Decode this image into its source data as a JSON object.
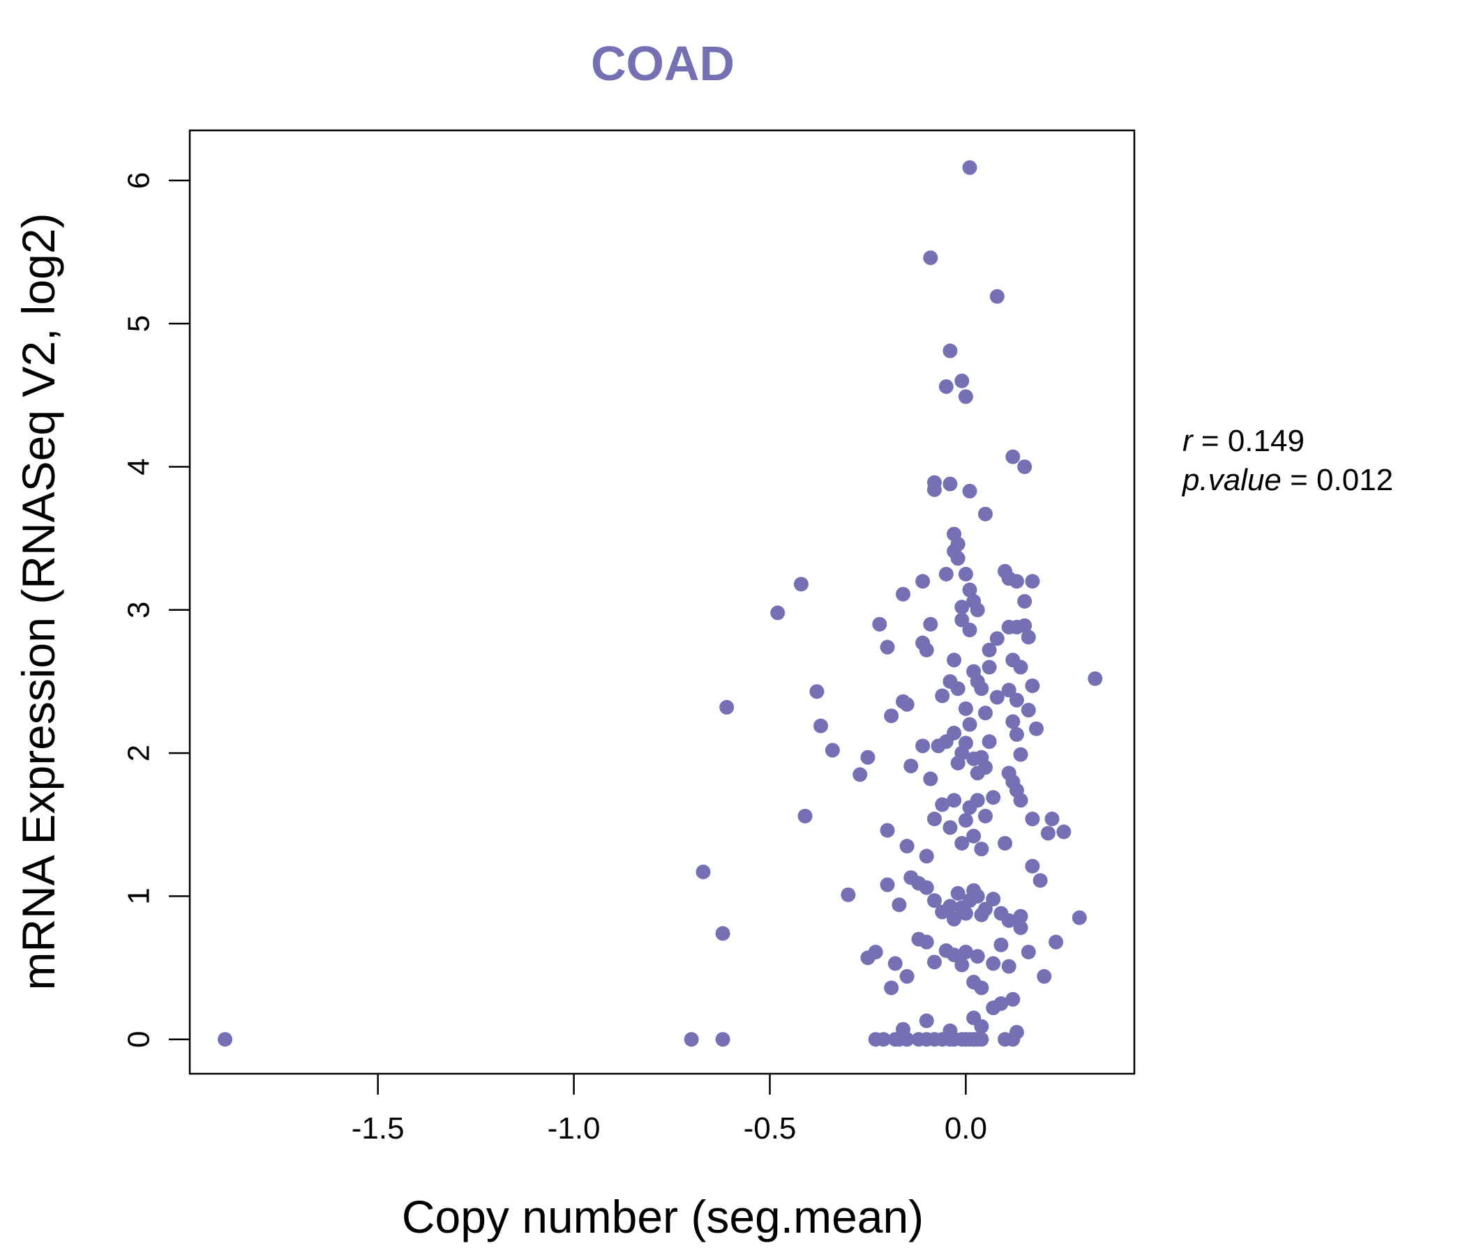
{
  "chart_data": {
    "type": "scatter",
    "title": "COAD",
    "xlabel": "Copy number (seg.mean)",
    "ylabel": "mRNA Expression (RNASeq V2, log2)",
    "xlim": [
      -1.98,
      0.43
    ],
    "ylim": [
      -0.24,
      6.35
    ],
    "xticks": [
      -1.5,
      -1.0,
      -0.5,
      0.0
    ],
    "xtick_labels": [
      "-1.5",
      "-1.0",
      "-0.5",
      "0.0"
    ],
    "yticks": [
      0,
      1,
      2,
      3,
      4,
      5,
      6
    ],
    "ytick_labels": [
      "0",
      "1",
      "2",
      "3",
      "4",
      "5",
      "6"
    ],
    "grid": false,
    "legend": "none",
    "colors": {
      "point": "#7570b3",
      "title": "#7570b3",
      "axis": "#000000"
    },
    "stats": {
      "r_label": "r",
      "r_value": "0.149",
      "p_label": "p.value",
      "p_value": "0.012"
    },
    "series": [
      {
        "x": [
          -1.89,
          -0.7,
          -0.62,
          -0.23,
          -0.21,
          -0.18,
          -0.17,
          -0.15,
          -0.12,
          -0.1,
          -0.08,
          -0.06,
          -0.04,
          -0.03,
          -0.01,
          0.0,
          0.01,
          0.02,
          0.03,
          0.04,
          0.1,
          0.12,
          0.01,
          -0.09,
          0.08,
          -0.04,
          -0.01,
          -0.05,
          0.0,
          0.12,
          0.15,
          -0.08,
          -0.04,
          -0.08,
          0.01,
          0.05,
          -0.03,
          -0.02,
          -0.03,
          -0.02,
          -0.42,
          -0.48,
          -0.11,
          -0.16,
          0.0,
          -0.05,
          0.01,
          0.1,
          0.11,
          0.13,
          0.17,
          -0.01,
          0.02,
          0.03,
          0.15,
          -0.22,
          -0.09,
          -0.01,
          0.06,
          0.08,
          0.11,
          0.13,
          0.15,
          0.16,
          -0.11,
          -0.2,
          -0.1,
          -0.03,
          0.01,
          0.06,
          0.12,
          0.14,
          -0.61,
          -0.38,
          -0.19,
          -0.16,
          -0.15,
          -0.06,
          -0.04,
          -0.02,
          0.0,
          0.02,
          0.03,
          0.04,
          0.05,
          0.08,
          0.11,
          0.12,
          0.13,
          0.16,
          0.17,
          0.33,
          -0.37,
          -0.34,
          -0.25,
          -0.27,
          -0.14,
          -0.11,
          -0.09,
          -0.07,
          -0.05,
          -0.03,
          -0.02,
          -0.01,
          0.0,
          0.01,
          0.02,
          0.03,
          0.04,
          0.05,
          0.06,
          0.11,
          0.12,
          0.13,
          0.14,
          0.18,
          -0.41,
          -0.2,
          -0.15,
          -0.1,
          -0.08,
          -0.06,
          -0.04,
          -0.03,
          -0.01,
          0.0,
          0.01,
          0.02,
          0.03,
          0.04,
          0.05,
          0.07,
          0.1,
          0.13,
          0.14,
          0.17,
          0.21,
          0.22,
          0.25,
          -0.67,
          -0.3,
          -0.2,
          -0.17,
          -0.14,
          -0.12,
          -0.1,
          -0.08,
          -0.06,
          -0.04,
          -0.03,
          -0.02,
          -0.01,
          0.0,
          0.01,
          0.02,
          0.03,
          0.04,
          0.05,
          0.07,
          0.09,
          0.11,
          0.14,
          0.17,
          0.19,
          0.29,
          -0.62,
          -0.25,
          -0.23,
          -0.18,
          -0.15,
          -0.12,
          -0.1,
          -0.08,
          -0.05,
          -0.03,
          -0.01,
          0.0,
          0.02,
          0.03,
          0.04,
          0.07,
          0.09,
          0.11,
          0.14,
          0.16,
          0.2,
          0.23,
          -0.19,
          -0.16,
          -0.1,
          -0.04,
          0.02,
          0.04,
          0.07,
          0.09,
          0.12,
          0.13
        ],
        "y": [
          0.0,
          0.0,
          0.0,
          0.0,
          0.0,
          0.0,
          0.0,
          0.0,
          0.0,
          0.0,
          0.0,
          0.0,
          0.0,
          0.0,
          0.0,
          0.0,
          0.0,
          0.0,
          0.0,
          0.0,
          0.0,
          0.0,
          6.09,
          5.46,
          5.19,
          4.81,
          4.6,
          4.56,
          4.49,
          4.07,
          4.0,
          3.89,
          3.88,
          3.84,
          3.83,
          3.67,
          3.53,
          3.46,
          3.41,
          3.36,
          3.18,
          2.98,
          3.2,
          3.11,
          3.25,
          3.25,
          3.14,
          3.27,
          3.22,
          3.2,
          3.2,
          3.02,
          3.06,
          3.0,
          3.06,
          2.9,
          2.9,
          2.93,
          2.72,
          2.8,
          2.88,
          2.88,
          2.89,
          2.81,
          2.77,
          2.74,
          2.72,
          2.65,
          2.86,
          2.6,
          2.65,
          2.6,
          2.32,
          2.43,
          2.26,
          2.36,
          2.34,
          2.4,
          2.5,
          2.45,
          2.31,
          2.57,
          2.5,
          2.45,
          2.28,
          2.39,
          2.44,
          2.22,
          2.37,
          2.3,
          2.47,
          2.52,
          2.19,
          2.02,
          1.97,
          1.85,
          1.91,
          2.05,
          1.82,
          2.05,
          2.08,
          2.14,
          1.93,
          2.0,
          2.07,
          2.2,
          1.96,
          1.86,
          1.97,
          1.9,
          2.08,
          1.86,
          1.8,
          2.13,
          1.99,
          2.17,
          1.56,
          1.46,
          1.35,
          1.28,
          1.54,
          1.64,
          1.48,
          1.67,
          1.37,
          1.53,
          1.62,
          1.42,
          1.67,
          1.33,
          1.56,
          1.69,
          1.37,
          1.74,
          1.67,
          1.54,
          1.44,
          1.54,
          1.45,
          1.17,
          1.01,
          1.08,
          0.94,
          1.13,
          1.09,
          1.06,
          0.97,
          0.89,
          0.93,
          0.84,
          1.02,
          0.92,
          0.88,
          0.97,
          1.04,
          1.0,
          0.87,
          0.91,
          0.98,
          0.88,
          0.83,
          0.86,
          1.21,
          1.11,
          0.85,
          0.74,
          0.57,
          0.61,
          0.53,
          0.44,
          0.7,
          0.68,
          0.54,
          0.62,
          0.59,
          0.52,
          0.61,
          0.4,
          0.58,
          0.36,
          0.53,
          0.66,
          0.51,
          0.78,
          0.61,
          0.44,
          0.68,
          0.36,
          0.07,
          0.13,
          0.06,
          0.15,
          0.09,
          0.22,
          0.25,
          0.28,
          0.05
        ]
      }
    ]
  }
}
